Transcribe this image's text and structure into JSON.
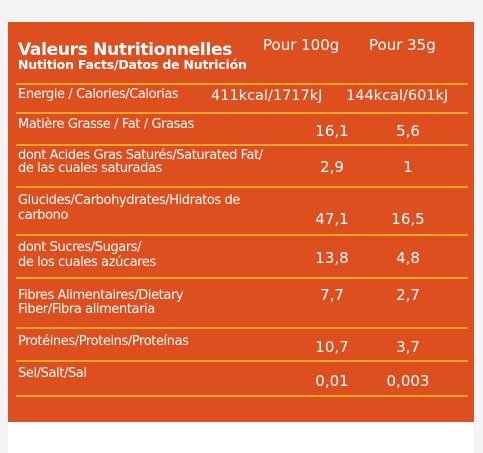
{
  "header": {
    "title": "Valeurs Nutritionnelles",
    "subtitle": "Nutition Facts/Datos de Nutrición",
    "col1": "Pour 100g",
    "col2": "Pour 35g"
  },
  "rows": [
    {
      "label1": "Energie / Calories/Calorias",
      "label2": "",
      "v1": "411kcal/1717kJ",
      "v2": "144kcal/601kJ"
    },
    {
      "label1": "Matière Grasse / Fat / Grasas",
      "label2": "",
      "v1": "16,1",
      "v2": "5,6"
    },
    {
      "label1": "dont Acides Gras Saturés/Saturated Fat/",
      "label2": "de las cuales saturadas",
      "v1": "2,9",
      "v2": "1"
    },
    {
      "label1": "Glucides/Carbohydrates/Hidratos de",
      "label2": "carbono",
      "v1": "47,1",
      "v2": "16,5"
    },
    {
      "label1": "dont Sucres/Sugars/",
      "label2": "de los cuales azúcares",
      "v1": "13,8",
      "v2": "4,8"
    },
    {
      "label1": "Fibres Alimentaires/Dietary",
      "label2": "Fiber/Fibra alimentaria",
      "v1": "7,7",
      "v2": "2,7"
    },
    {
      "label1": "Protéines/Proteins/Proteínas",
      "label2": "",
      "v1": "10,7",
      "v2": "3,7"
    },
    {
      "label1": "Sel/Salt/Sal",
      "label2": "",
      "v1": "0,01",
      "v2": "0,003"
    }
  ],
  "colors": {
    "panel": "#de4f1f",
    "rule": "#f6a623",
    "text": "#ffffff"
  }
}
